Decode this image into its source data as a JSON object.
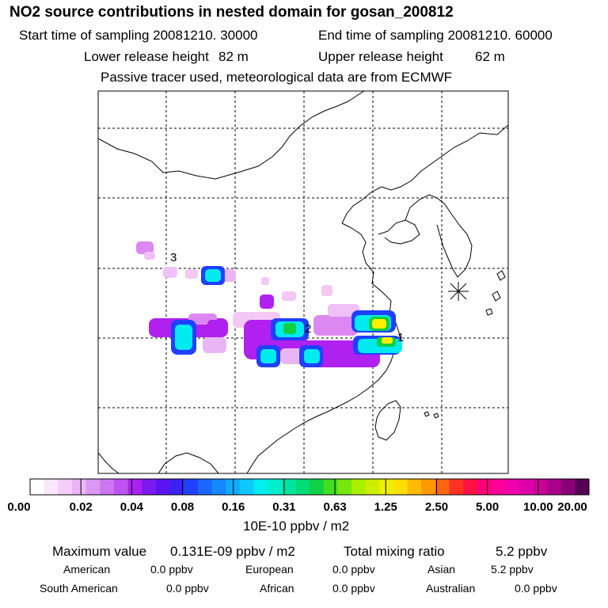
{
  "header": {
    "title": "NO2 source contributions in nested domain for gosan_200812",
    "start_label": "Start time of sampling 20081210. 30000",
    "end_label": "End time of sampling 20081210. 60000",
    "lower_label": "Lower release height",
    "lower_value": "82 m",
    "upper_label": "Upper release height",
    "upper_value": "62 m",
    "tracer_note": "Passive tracer used, meteorological data are from ECMWF"
  },
  "map": {
    "source_labels": [
      "1",
      "2",
      "3"
    ],
    "receptor_marker": "asterisk-receptor",
    "plume_colors": {
      "low": "#f3c8f5",
      "light": "#dd88f0",
      "purple": "#b020ee",
      "blue": "#2040ff",
      "cyan": "#00eaf0",
      "green": "#10d040",
      "yellow": "#ffee00"
    }
  },
  "colorbar": {
    "ticks": [
      "0.00",
      "0.02",
      "0.04",
      "0.08",
      "0.16",
      "0.31",
      "0.63",
      "1.25",
      "2.50",
      "5.00",
      "10.00",
      "20.00"
    ],
    "unit": "10E-10 ppbv / m2",
    "colors": [
      "#ffffff",
      "#fbe7fc",
      "#f4cef8",
      "#eab5f5",
      "#da98f3",
      "#cc77f2",
      "#bf55f1",
      "#aa22ee",
      "#7a1aee",
      "#5a14f0",
      "#3a22f2",
      "#2040ff",
      "#1a66ff",
      "#1488ff",
      "#12aaff",
      "#10c8ff",
      "#00eeee",
      "#00eecc",
      "#00e6a0",
      "#00dd77",
      "#10d044",
      "#40dd22",
      "#77e611",
      "#aaee00",
      "#ccee00",
      "#eeee00",
      "#ffdd00",
      "#ffbb00",
      "#ff9900",
      "#ff6611",
      "#ff3322",
      "#ff1144",
      "#ff0077",
      "#ff0099",
      "#ee00aa",
      "#dd00aa",
      "#cc0099",
      "#aa0088",
      "#880077",
      "#550055"
    ]
  },
  "stats": {
    "max_label": "Maximum value",
    "max_value": "0.131E-09 ppbv / m2",
    "total_label": "Total mixing ratio",
    "total_value": "5.2 ppbv",
    "regions": [
      {
        "name": "American",
        "value": "0.0 ppbv"
      },
      {
        "name": "European",
        "value": "0.0 ppbv"
      },
      {
        "name": "Asian",
        "value": "5.2 ppbv"
      },
      {
        "name": "South American",
        "value": "0.0 ppbv"
      },
      {
        "name": "African",
        "value": "0.0 ppbv"
      },
      {
        "name": "Australian",
        "value": "0.0 ppbv"
      }
    ]
  }
}
